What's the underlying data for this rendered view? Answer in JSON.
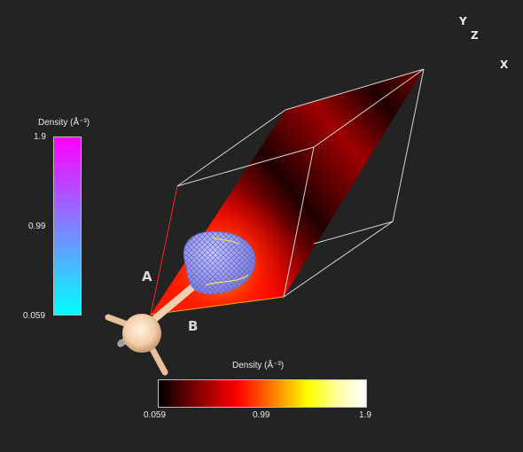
{
  "axes": {
    "y": "Y",
    "z": "Z",
    "x": "X"
  },
  "atom_labels": {
    "a": "A",
    "b": "B"
  },
  "colorbar_vertical": {
    "title": "Density (Å⁻³)",
    "max": "1.9",
    "mid": "0.99",
    "min": "0.059",
    "colors": {
      "top": "#ff00ff",
      "middle": "#8080ff",
      "bottom": "#00ffff"
    }
  },
  "colorbar_horizontal": {
    "title": "Density (Å⁻³)",
    "min": "0.059",
    "mid": "0.99",
    "max": "1.9",
    "colors": [
      "#000000",
      "#800000",
      "#ff0000",
      "#ff7a00",
      "#ffff00",
      "#ffffff"
    ]
  },
  "scene_colors": {
    "background": "#232323",
    "atom": "#f5d2b0",
    "isosurface": "#8f90e6",
    "box": "#d8d8d8"
  }
}
